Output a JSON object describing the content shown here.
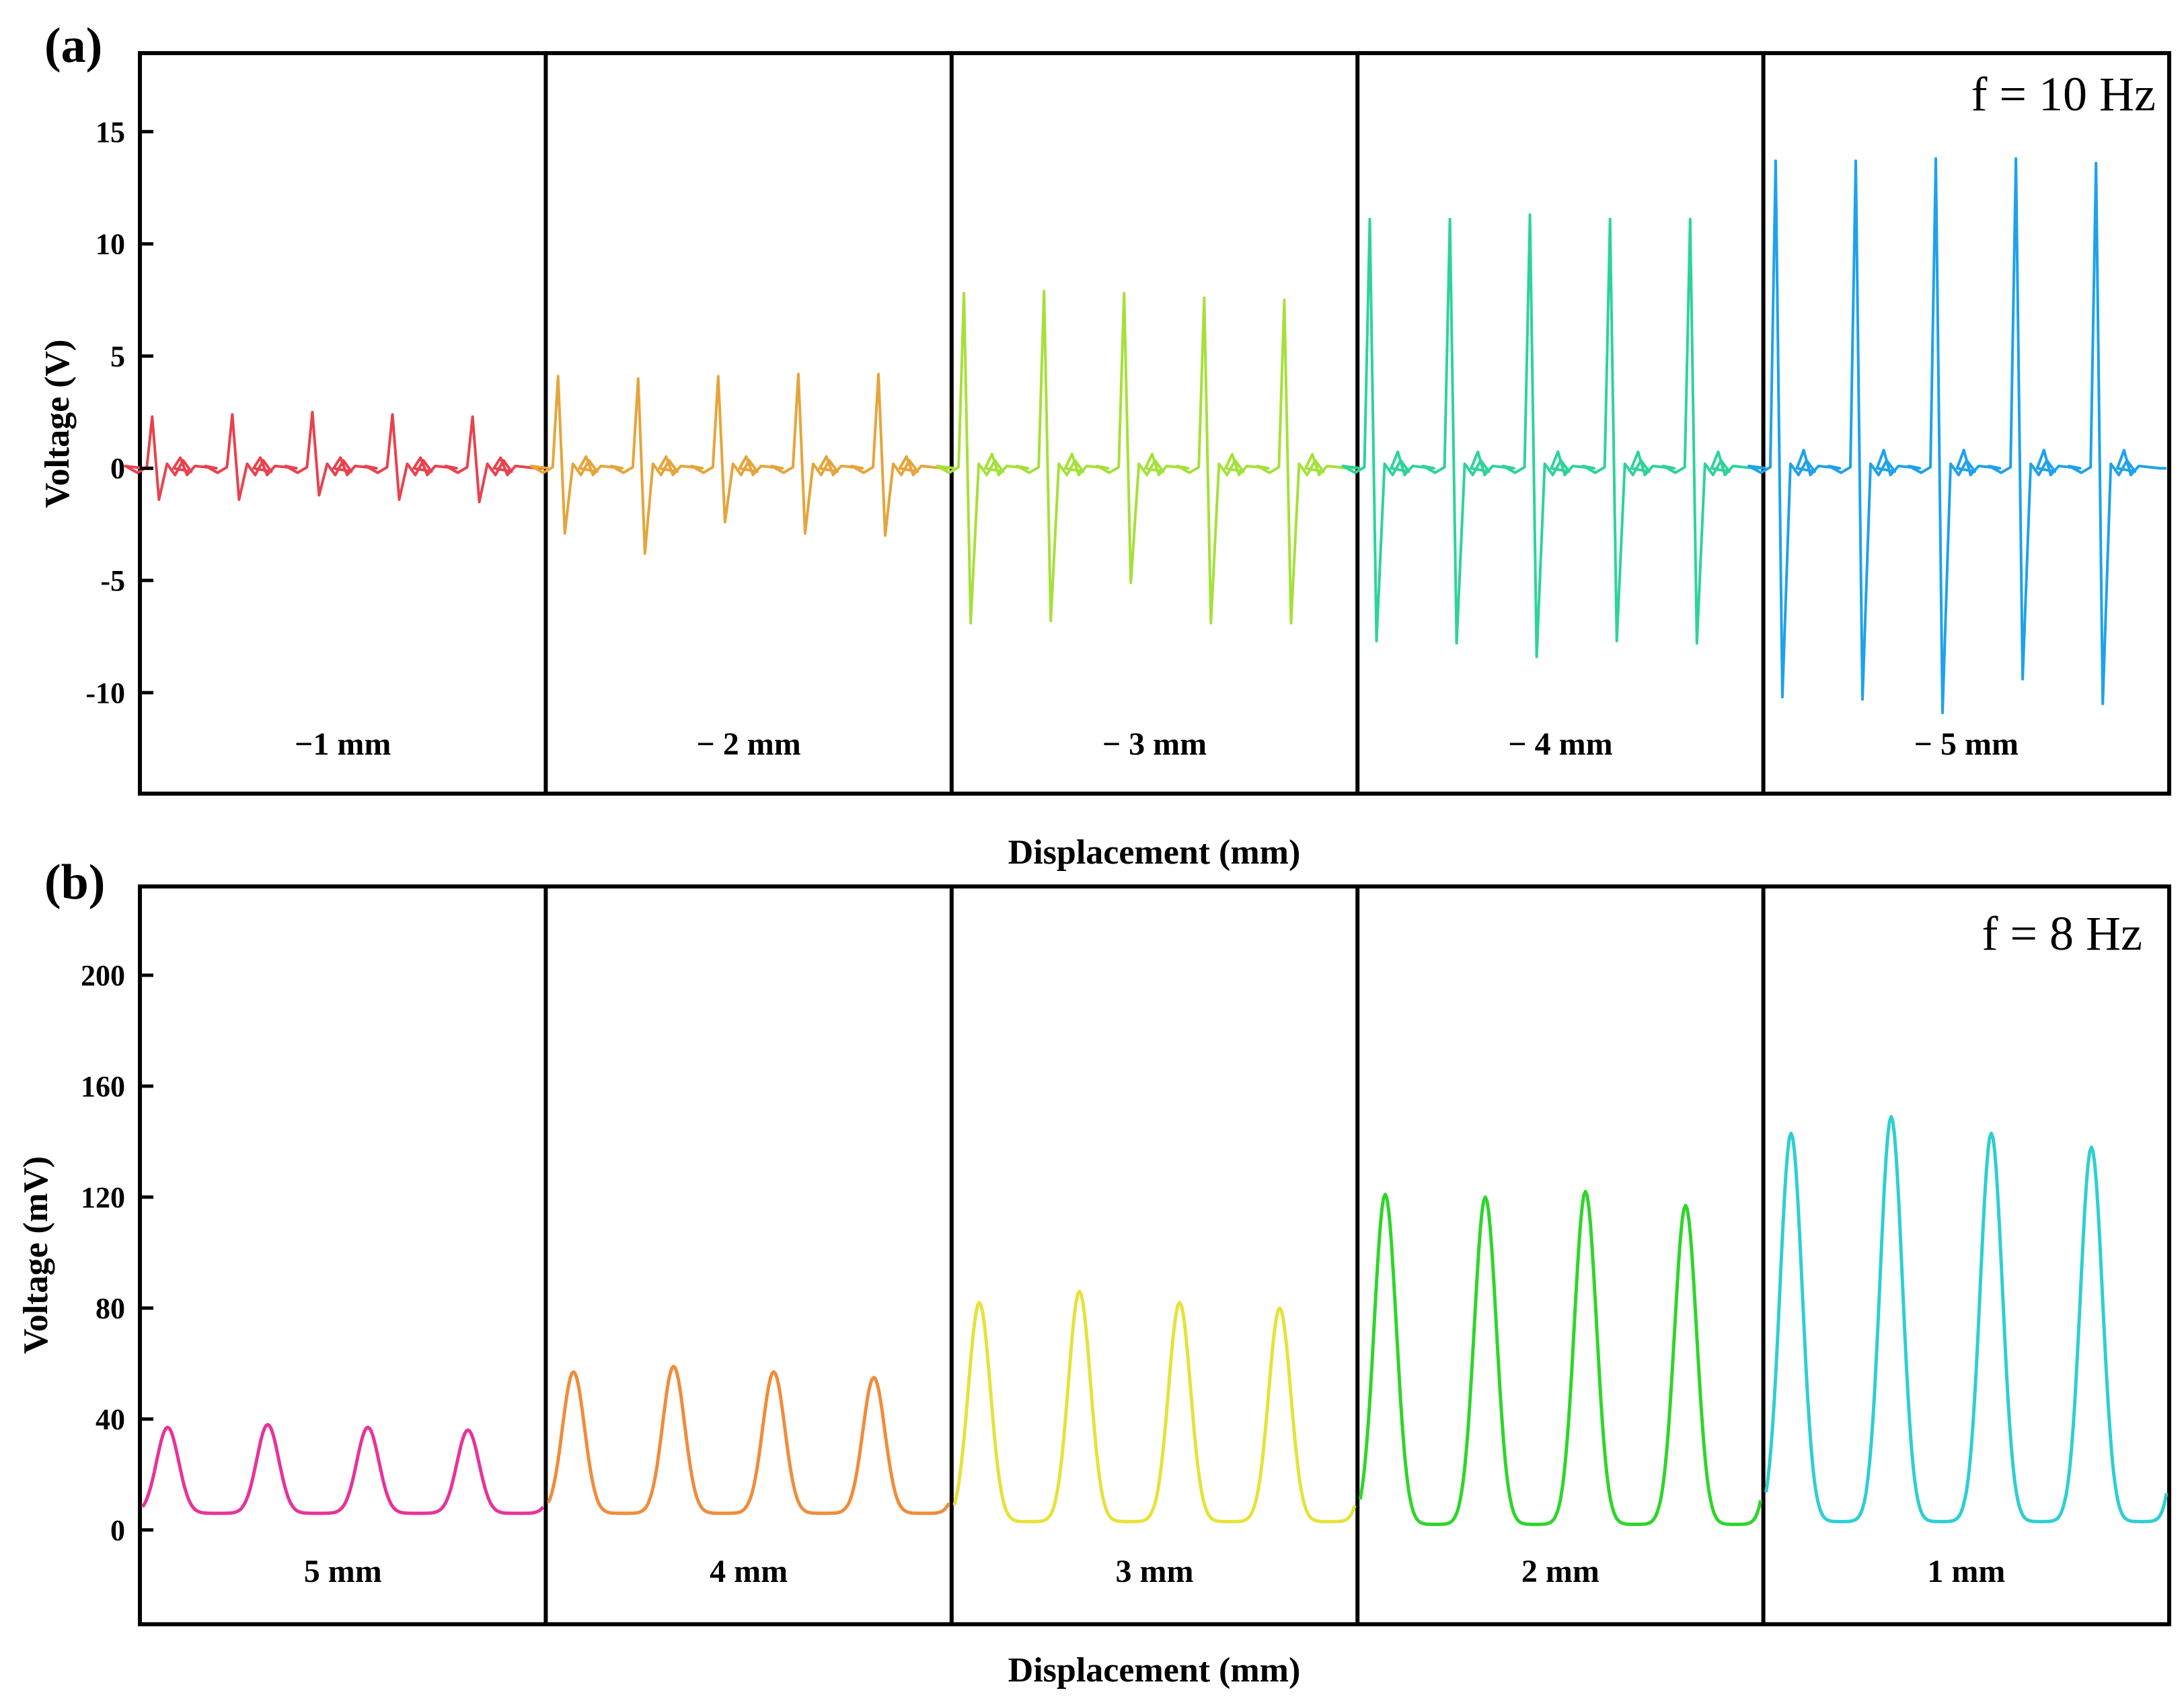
{
  "chart_data": [
    {
      "type": "line",
      "panel_label": "(a)",
      "annotation": "f = 10 Hz",
      "xlabel": "Displacement (mm)",
      "ylabel": "Voltage (V)",
      "ylim": [
        -14.5,
        18.5
      ],
      "yticks": [
        15,
        10,
        5,
        0,
        -5,
        -10
      ],
      "ytick_labels": [
        "15",
        "10",
        "5",
        "0",
        "-5",
        "-10"
      ],
      "grid": false,
      "series": [
        {
          "label": "−1 mm",
          "color": "#e8424e",
          "pulses": 5,
          "peak_values": [
            2.3,
            2.4,
            2.5,
            2.4,
            2.3
          ],
          "trough_values": [
            -1.4,
            -1.4,
            -1.2,
            -1.4,
            -1.5
          ]
        },
        {
          "label": "− 2 mm",
          "color": "#e6a43a",
          "pulses": 5,
          "peak_values": [
            4.1,
            4.0,
            4.1,
            4.2,
            4.2
          ],
          "trough_values": [
            -2.9,
            -3.8,
            -2.4,
            -2.9,
            -3.0
          ]
        },
        {
          "label": "− 3 mm",
          "color": "#a6e03a",
          "pulses": 5,
          "peak_values": [
            7.8,
            7.9,
            7.8,
            7.6,
            7.5
          ],
          "trough_values": [
            -6.9,
            -6.8,
            -5.1,
            -6.9,
            -6.9
          ]
        },
        {
          "label": "− 4 mm",
          "color": "#2ed39a",
          "pulses": 5,
          "peak_values": [
            11.1,
            11.1,
            11.3,
            11.1,
            11.1
          ],
          "trough_values": [
            -7.7,
            -7.8,
            -8.4,
            -7.7,
            -7.8
          ]
        },
        {
          "label": "− 5 mm",
          "color": "#1ea2ea",
          "pulses": 5,
          "peak_values": [
            13.7,
            13.7,
            13.8,
            13.8,
            13.6
          ],
          "trough_values": [
            -10.2,
            -10.3,
            -10.9,
            -9.4,
            -10.5
          ]
        }
      ]
    },
    {
      "type": "line",
      "panel_label": "(b)",
      "annotation": "f = 8 Hz",
      "xlabel": "Displacement (mm)",
      "ylabel": "Voltage (mV)",
      "ylim": [
        -34,
        232
      ],
      "yticks": [
        200,
        160,
        120,
        80,
        40,
        0
      ],
      "ytick_labels": [
        "200",
        "160",
        "120",
        "80",
        "40",
        "0"
      ],
      "grid": false,
      "series": [
        {
          "label": "5 mm",
          "color": "#e8329a",
          "peaks": 4,
          "peak_values": [
            37,
            38,
            37,
            36
          ],
          "baseline": 6
        },
        {
          "label": "4 mm",
          "color": "#f08c3a",
          "peaks": 4,
          "peak_values": [
            57,
            59,
            57,
            55
          ],
          "baseline": 6
        },
        {
          "label": "3 mm",
          "color": "#e6e23a",
          "peaks": 4,
          "peak_values": [
            82,
            86,
            82,
            80
          ],
          "baseline": 3
        },
        {
          "label": "2 mm",
          "color": "#2ed62a",
          "peaks": 4,
          "peak_values": [
            121,
            120,
            122,
            117
          ],
          "baseline": 2
        },
        {
          "label": "1 mm",
          "color": "#2ecfd2",
          "peaks": 4,
          "peak_values": [
            143,
            149,
            143,
            138
          ],
          "baseline": 3
        }
      ]
    }
  ]
}
